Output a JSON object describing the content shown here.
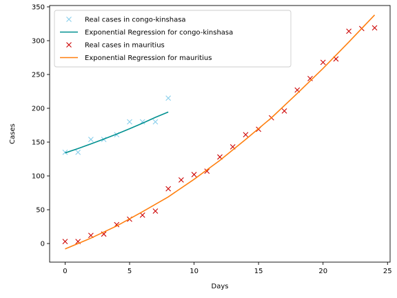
{
  "chart_data": {
    "type": "scatter",
    "title": "",
    "xlabel": "Days",
    "ylabel": "Cases",
    "xlim": [
      -1.2,
      25.2
    ],
    "ylim": [
      -27.5,
      352
    ],
    "xticks": [
      0,
      5,
      10,
      15,
      20,
      25
    ],
    "yticks": [
      0,
      50,
      100,
      150,
      200,
      250,
      300,
      350
    ],
    "grid": false,
    "legend": "upper-left",
    "series": [
      {
        "name": "Real cases in congo-kinshasa",
        "kind": "points",
        "marker": "x",
        "color": "#87ceeb",
        "x": [
          0,
          1,
          2,
          3,
          4,
          5,
          6,
          7,
          8
        ],
        "y": [
          135,
          135,
          154,
          154,
          161,
          180,
          180,
          180,
          215
        ]
      },
      {
        "name": "Exponential Regression for congo-kinshasa",
        "kind": "line",
        "color": "#009090",
        "x": [
          0,
          1,
          2,
          3,
          4,
          5,
          6,
          7,
          8
        ],
        "y": [
          134,
          140.5,
          147.3,
          154.5,
          161.9,
          169.8,
          177.9,
          186.6,
          194.5
        ]
      },
      {
        "name": "Real cases in mauritius",
        "kind": "points",
        "marker": "x",
        "color": "#cc0000",
        "x": [
          0,
          1,
          2,
          3,
          4,
          5,
          6,
          7,
          8,
          9,
          10,
          11,
          12,
          13,
          14,
          15,
          16,
          17,
          18,
          19,
          20,
          21,
          22,
          23,
          24
        ],
        "y": [
          3,
          3,
          12,
          14,
          28,
          36,
          42,
          48,
          81,
          94,
          102,
          107,
          128,
          143,
          161,
          169,
          186,
          196,
          227,
          244,
          268,
          273,
          314,
          318,
          319
        ]
      },
      {
        "name": "Exponential Regression for mauritius",
        "kind": "line",
        "color": "#ff7f0e",
        "x": [
          0,
          2,
          4,
          6,
          8,
          10,
          12,
          14,
          16,
          18,
          20,
          22,
          24
        ],
        "y": [
          -8,
          8,
          26,
          47,
          69,
          95,
          123,
          154,
          186,
          222,
          259,
          298,
          338
        ]
      }
    ]
  }
}
